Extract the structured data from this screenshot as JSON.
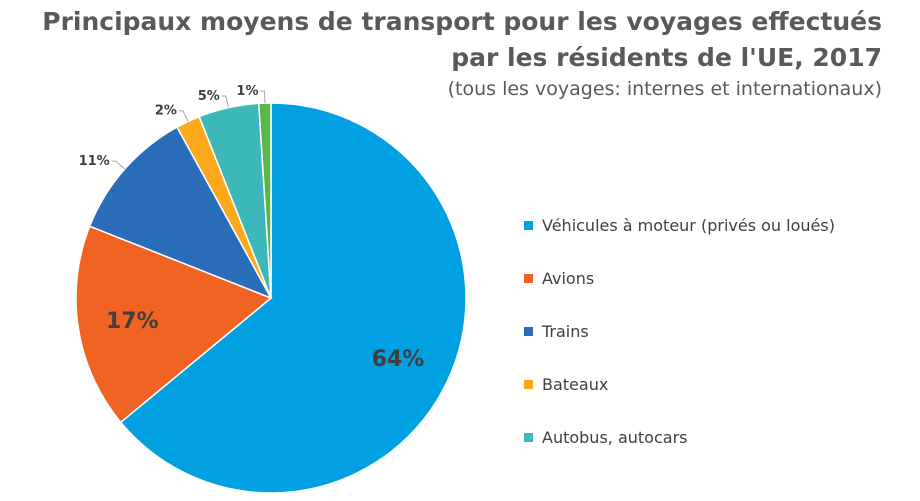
{
  "chart_data": {
    "type": "pie",
    "title_line1": "Principaux moyens de transport pour les voyages effectués",
    "title_line2": "par les résidents de l'UE, 2017",
    "subtitle": "(tous les voyages: internes et internationaux)",
    "slices": [
      {
        "name": "Véhicules à moteur (privés ou loués)",
        "value": 64,
        "label": "64%",
        "color": "#00A0E3",
        "in_legend": true,
        "label_position": "inside"
      },
      {
        "name": "Avions",
        "value": 17,
        "label": "17%",
        "color": "#F06323",
        "in_legend": true,
        "label_position": "inside"
      },
      {
        "name": "Trains",
        "value": 11,
        "label": "11%",
        "color": "#2A6EB9",
        "in_legend": true,
        "label_position": "outside"
      },
      {
        "name": "Bateaux",
        "value": 2,
        "label": "2%",
        "color": "#FBA81B",
        "in_legend": true,
        "label_position": "outside"
      },
      {
        "name": "Autobus, autocars",
        "value": 5,
        "label": "5%",
        "color": "#3CB8B8",
        "in_legend": true,
        "label_position": "outside"
      },
      {
        "name": "",
        "value": 1,
        "label": "1%",
        "color": "#58B747",
        "in_legend": false,
        "label_position": "outside"
      }
    ],
    "legend_position": "right"
  }
}
